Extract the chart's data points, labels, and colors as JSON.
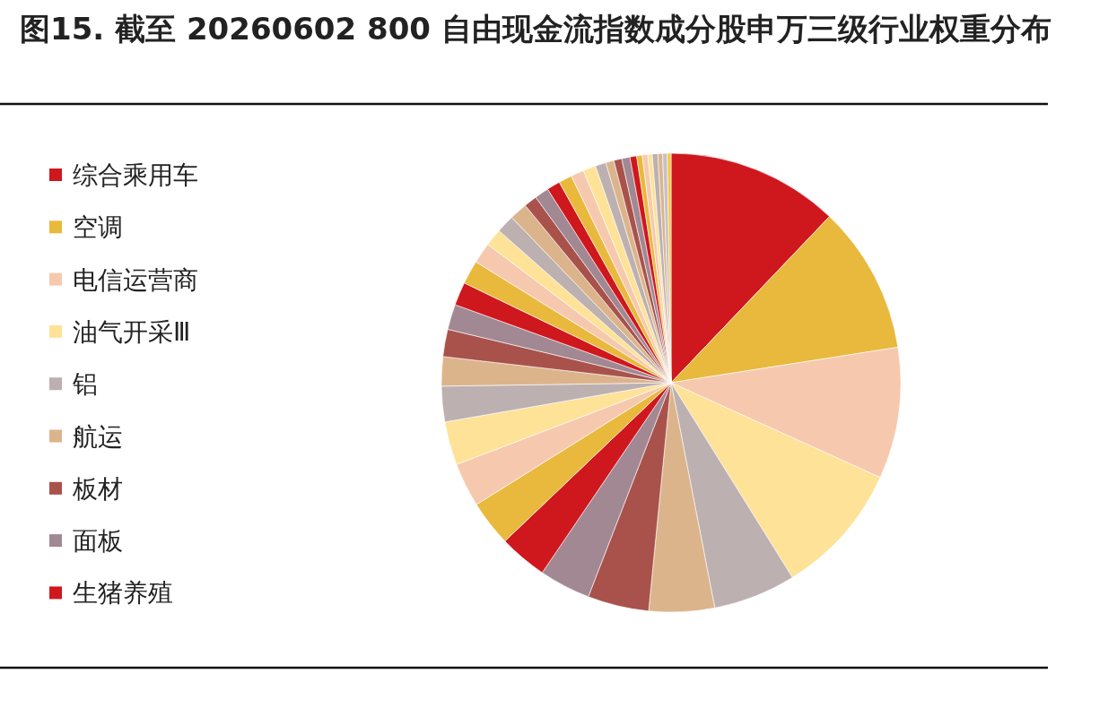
{
  "chart_data": {
    "type": "pie",
    "title": "图15. 截至 20260602 800 自由现金流指数成分股申万三级行业权重分布",
    "categories": [
      "综合乘用车",
      "空调",
      "电信运营商",
      "油气开采Ⅲ",
      "铝",
      "航运",
      "板材",
      "面板",
      "生猪养殖",
      null,
      null,
      null,
      null,
      null,
      null,
      null,
      null,
      null,
      null,
      null,
      null,
      null,
      null,
      null,
      null,
      null,
      null,
      null,
      null,
      null,
      null,
      null,
      null,
      null,
      null,
      null,
      null,
      null,
      null,
      null
    ],
    "values": [
      12.11,
      10.42,
      9.25,
      9.36,
      5.81,
      4.61,
      4.31,
      3.61,
      3.39,
      3.22,
      3.11,
      3.06,
      2.5,
      2.06,
      1.92,
      1.78,
      1.64,
      1.67,
      1.47,
      1.22,
      1.28,
      1.25,
      0.92,
      1.0,
      0.94,
      0.94,
      0.92,
      0.89,
      0.75,
      0.58,
      0.56,
      0.58,
      0.47,
      0.39,
      0.39,
      0.31,
      0.39,
      0.33,
      0.33,
      0.26
    ],
    "colors": [
      "#cf171e",
      "#e8b93c",
      "#f6c9ae",
      "#fee298",
      "#bcb0b0",
      "#dcb48c",
      "#a9524b",
      "#a28893",
      "#cf171e",
      "#e8b93c",
      "#f6c9ae",
      "#fee298",
      "#bcb0b0",
      "#dcb48c",
      "#a9524b",
      "#a28893",
      "#cf171e",
      "#e8b93c",
      "#f6c9ae",
      "#fee298",
      "#bcb0b0",
      "#dcb48c",
      "#a9524b",
      "#a28893",
      "#cf171e",
      "#e8b93c",
      "#f6c9ae",
      "#fee298",
      "#bcb0b0",
      "#dcb48c",
      "#a9524b",
      "#a28893",
      "#cf171e",
      "#e8b93c",
      "#f6c9ae",
      "#fee298",
      "#bcb0b0",
      "#dcb48c",
      "#c4c2c8",
      "#f5c842"
    ],
    "legend": "left"
  }
}
